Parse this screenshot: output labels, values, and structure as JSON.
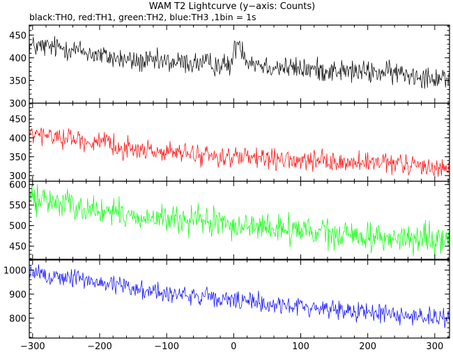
{
  "chart_data": {
    "type": "line",
    "title": "WAM T2 Lightcurve (y−axis: Counts)",
    "subtitle": "black:TH0, red:TH1, green:TH2, blue:TH3 ,1bin = 1s",
    "xlabel": "",
    "ylabel": "",
    "xlim": [
      -305,
      322
    ],
    "x_ticks": [
      -300,
      -200,
      -100,
      0,
      100,
      200,
      300
    ],
    "x_tick_labels": [
      "−300",
      "−200",
      "−100",
      "0",
      "100",
      "200",
      "300"
    ],
    "bin_size_s": 1,
    "grid": false,
    "legend": "none",
    "panels": [
      {
        "series_name": "TH0",
        "color": "#000000",
        "ylim": [
          300,
          472
        ],
        "y_ticks": [
          300,
          350,
          400,
          450
        ],
        "trend_x": [
          -300,
          -250,
          -200,
          -150,
          -100,
          -50,
          -20,
          -5,
          5,
          10,
          20,
          50,
          100,
          150,
          200,
          250,
          300,
          320
        ],
        "trend_y": [
          425,
          422,
          405,
          392,
          390,
          388,
          385,
          382,
          435,
          430,
          395,
          382,
          375,
          372,
          368,
          366,
          358,
          358
        ],
        "noise": 16
      },
      {
        "series_name": "TH1",
        "color": "#ff0000",
        "ylim": [
          285,
          492
        ],
        "y_ticks": [
          300,
          350,
          400,
          450
        ],
        "trend_x": [
          -300,
          -250,
          -200,
          -150,
          -100,
          -50,
          0,
          50,
          100,
          150,
          200,
          250,
          300,
          320
        ],
        "trend_y": [
          408,
          402,
          385,
          370,
          362,
          355,
          348,
          342,
          338,
          335,
          333,
          330,
          322,
          322
        ],
        "noise": 17
      },
      {
        "series_name": "TH2",
        "color": "#00ff00",
        "ylim": [
          418,
          608
        ],
        "y_ticks": [
          450,
          500,
          550,
          600
        ],
        "trend_x": [
          -300,
          -250,
          -200,
          -150,
          -100,
          -50,
          0,
          50,
          100,
          150,
          200,
          250,
          300,
          320
        ],
        "trend_y": [
          565,
          555,
          535,
          522,
          515,
          510,
          502,
          495,
          487,
          478,
          474,
          468,
          462,
          462
        ],
        "noise": 22
      },
      {
        "series_name": "TH3",
        "color": "#0000ff",
        "ylim": [
          717,
          1042
        ],
        "y_ticks": [
          800,
          900,
          1000
        ],
        "trend_x": [
          -300,
          -250,
          -200,
          -150,
          -100,
          -50,
          0,
          50,
          100,
          150,
          200,
          250,
          300,
          320
        ],
        "trend_y": [
          985,
          970,
          950,
          925,
          905,
          888,
          872,
          860,
          848,
          838,
          825,
          815,
          800,
          800
        ],
        "noise": 26
      }
    ]
  }
}
